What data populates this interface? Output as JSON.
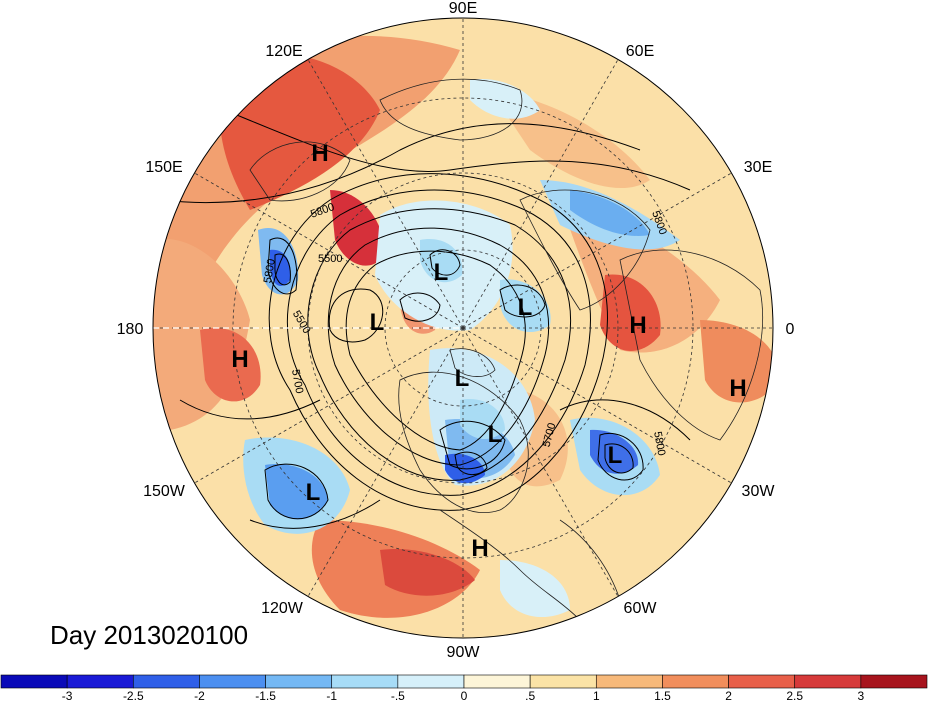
{
  "title": "Day 2013020100",
  "longitude_labels": [
    "90E",
    "60E",
    "30E",
    "0",
    "30W",
    "60W",
    "90W",
    "120W",
    "150W",
    "180",
    "150E",
    "120E"
  ],
  "pressure_centers": [
    "H",
    "H",
    "H",
    "H",
    "H",
    "L",
    "L",
    "L",
    "L",
    "L",
    "L",
    "L"
  ],
  "contour_labels": [
    "5800",
    "5500",
    "5800",
    "5500",
    "5700",
    "5800",
    "5700",
    "5800"
  ],
  "colorbar": {
    "ticks": [
      "-3",
      "-2.5",
      "-2",
      "-1.5",
      "-1",
      "-.5",
      "0",
      ".5",
      "1",
      "1.5",
      "2",
      "2.5",
      "3"
    ],
    "colors": [
      "#1a1ad6",
      "#2f5fe8",
      "#4c8ff0",
      "#74b8f4",
      "#a7dcf7",
      "#d6f0fa",
      "#fdf5d8",
      "#fbe3a6",
      "#f7b97a",
      "#f18e5c",
      "#e85f49",
      "#d63a3a",
      "#a7141d"
    ]
  }
}
